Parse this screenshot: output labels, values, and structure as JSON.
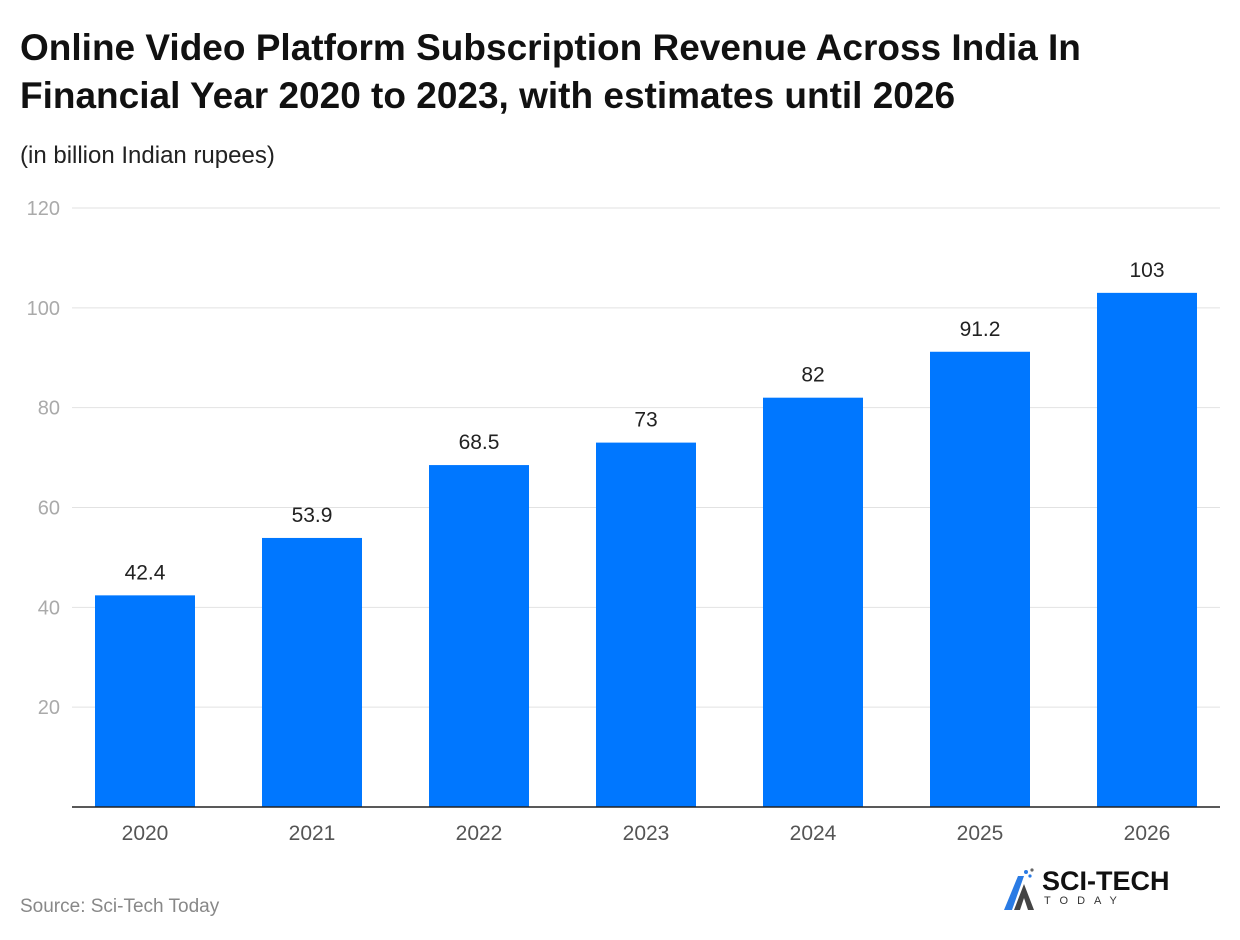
{
  "chart_data": {
    "type": "bar",
    "title": "Online Video Platform Subscription Revenue Across India In Financial Year 2020 to 2023, with estimates until 2026",
    "subtitle": "(in billion Indian rupees)",
    "categories": [
      "2020",
      "2021",
      "2022",
      "2023",
      "2024",
      "2025",
      "2026"
    ],
    "values": [
      42.4,
      53.9,
      68.5,
      73,
      82,
      91.2,
      103
    ],
    "value_labels": [
      "42.4",
      "53.9",
      "68.5",
      "73",
      "82",
      "91.2",
      "103"
    ],
    "ylim": [
      0,
      120
    ],
    "yticks": [
      20,
      40,
      60,
      80,
      100,
      120
    ],
    "grid": true,
    "xlabel": "",
    "ylabel": "",
    "bar_color": "#0077ff"
  },
  "source": "Source: Sci-Tech Today",
  "logo": {
    "main": "SCI-TECH",
    "sub": "TODAY"
  }
}
